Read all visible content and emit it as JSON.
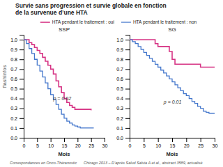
{
  "chart_data": [
    {
      "type": "step",
      "title": [
        "Survie sans progression et survie globale en fonction",
        "de la survenue d’une HTA"
      ],
      "subtitle": "SSP",
      "xlabel": "Mois",
      "xlim": [
        0,
        30
      ],
      "xticks": [
        0,
        5,
        10,
        15,
        20,
        25,
        30
      ],
      "ylim": [
        0.0,
        1.05
      ],
      "yticks": [
        {
          "value": 0.0,
          "label": "0.0"
        },
        0.1,
        0.2,
        0.3,
        0.4,
        0.5,
        0.6,
        0.7,
        0.8,
        0.9,
        {
          "value": 1.0,
          "label": "1.0"
        }
      ],
      "series": [
        {
          "name": "HTA pendant le traitement : oui",
          "color": "#d63384",
          "x": [
            0,
            1,
            2,
            3,
            4,
            5,
            6,
            7,
            8,
            9,
            10,
            11,
            12,
            13,
            14,
            15,
            16,
            17,
            18,
            19,
            20,
            21,
            25
          ],
          "values": [
            1.0,
            1.0,
            0.97,
            0.95,
            0.92,
            0.89,
            0.86,
            0.82,
            0.78,
            0.74,
            0.7,
            0.65,
            0.58,
            0.52,
            0.46,
            0.4,
            0.36,
            0.33,
            0.31,
            0.29,
            0.29,
            0.29,
            0.28
          ]
        },
        {
          "name": "HTA pendant le traitement : non",
          "color": "#4477cc",
          "x": [
            0,
            1,
            2,
            3,
            4,
            5,
            6,
            7,
            8,
            9,
            10,
            11,
            12,
            13,
            14,
            15,
            16,
            17,
            18,
            19,
            20,
            21,
            22,
            23,
            26
          ],
          "values": [
            1.0,
            0.96,
            0.91,
            0.86,
            0.8,
            0.74,
            0.68,
            0.62,
            0.56,
            0.5,
            0.44,
            0.39,
            0.34,
            0.29,
            0.24,
            0.2,
            0.17,
            0.15,
            0.13,
            0.12,
            0.11,
            0.1,
            0.1,
            0.1,
            0.1
          ]
        }
      ],
      "annotations": [
        {
          "text": "p = 0.02",
          "x": 11,
          "y": 0.38
        }
      ],
      "brand": "flashinfos",
      "footer": [
        "Correspondances en Onco-Théranostic",
        "Chicago 2013 – D’après Salud Salvia A et al., abstract 3589, actualisé"
      ]
    },
    {
      "type": "step",
      "subtitle": "SG",
      "xlabel": "Mois",
      "xlim": [
        0,
        30
      ],
      "xticks": [
        0,
        5,
        10,
        15,
        20,
        25,
        30
      ],
      "ylim": [
        0.0,
        1.05
      ],
      "yticks": [
        {
          "value": 0.0,
          "label": "0.0"
        },
        0.1,
        0.2,
        0.3,
        0.4,
        0.5,
        0.6,
        0.7,
        0.8,
        0.9,
        {
          "value": 1.0,
          "label": "1.0"
        }
      ],
      "series": [
        {
          "color": "#d63384",
          "x": [
            0,
            5,
            9,
            10,
            14,
            15,
            16,
            20,
            25,
            30
          ],
          "values": [
            1.0,
            1.0,
            0.96,
            0.93,
            0.88,
            0.8,
            0.75,
            0.75,
            0.72,
            0.72
          ]
        },
        {
          "color": "#4477cc",
          "x": [
            0,
            1,
            2,
            3,
            4,
            5,
            6,
            7,
            8,
            9,
            10,
            11,
            12,
            13,
            14,
            15,
            16,
            17,
            18,
            19,
            20,
            21,
            22,
            23,
            24,
            25,
            26,
            27,
            28,
            29,
            30
          ],
          "values": [
            1.0,
            0.98,
            0.96,
            0.93,
            0.9,
            0.87,
            0.84,
            0.81,
            0.78,
            0.75,
            0.72,
            0.69,
            0.66,
            0.63,
            0.6,
            0.57,
            0.54,
            0.51,
            0.48,
            0.45,
            0.43,
            0.4,
            0.37,
            0.35,
            0.32,
            0.3,
            0.27,
            0.26,
            0.25,
            0.25,
            0.25
          ]
        }
      ],
      "annotations": [
        {
          "text": "p = 0.01",
          "x": 12,
          "y": 0.35
        }
      ]
    }
  ]
}
